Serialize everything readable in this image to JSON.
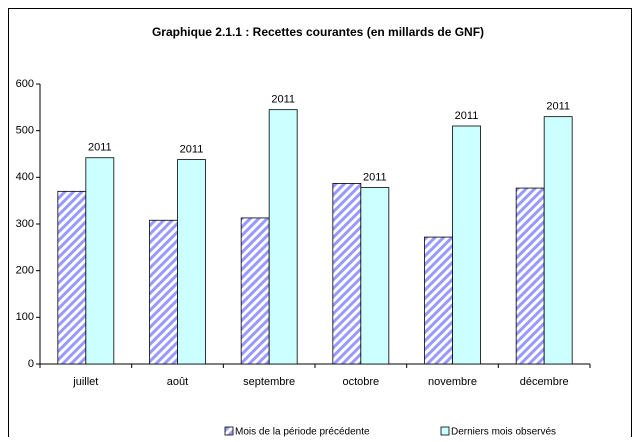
{
  "chart_data": {
    "type": "bar",
    "title": "Graphique 2.1.1 : Recettes courantes (en millards de GNF)",
    "categories": [
      "juillet",
      "août",
      "septembre",
      "octobre",
      "novembre",
      "décembre"
    ],
    "series": [
      {
        "name": "Mois de la période précédente",
        "color": "#9999ff",
        "pattern": "hatch",
        "values": [
          370,
          308,
          313,
          387,
          272,
          377
        ]
      },
      {
        "name": "Derniers mois observés",
        "color": "#ccffff",
        "values": [
          442,
          438,
          545,
          378,
          510,
          530
        ],
        "labels": [
          "2011",
          "2011",
          "2011",
          "2011",
          "2011",
          "2011"
        ]
      }
    ],
    "ylim": [
      0,
      600
    ],
    "yticks": [
      0,
      100,
      200,
      300,
      400,
      500,
      600
    ],
    "grid": false,
    "legend": "bottom"
  }
}
